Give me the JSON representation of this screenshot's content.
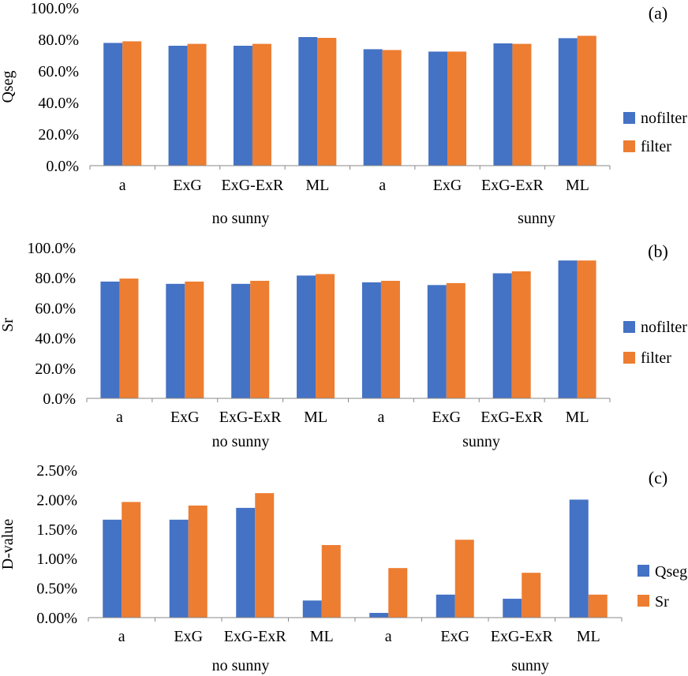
{
  "colors": {
    "series1": "#4472C4",
    "series2": "#ED7D31",
    "axis": "#898989"
  },
  "chart_data": [
    {
      "type": "bar",
      "panel_label": "(a)",
      "ylabel": "Qseg",
      "ylim": [
        0,
        100
      ],
      "yticks": [
        0,
        20,
        40,
        60,
        80,
        100
      ],
      "ytick_labels": [
        "0.0%",
        "20.0%",
        "40.0%",
        "60.0%",
        "80.0%",
        "100.0%"
      ],
      "categories": [
        "a",
        "ExG",
        "ExG-ExR",
        "ML",
        "a",
        "ExG",
        "ExG-ExR",
        "ML"
      ],
      "groups": [
        "no sunny",
        "sunny"
      ],
      "series": [
        {
          "name": "nofilter",
          "values": [
            77.8,
            76.0,
            76.0,
            81.5,
            73.8,
            72.3,
            77.5,
            80.8
          ]
        },
        {
          "name": "filter",
          "values": [
            78.8,
            77.2,
            77.2,
            81.0,
            73.3,
            72.3,
            77.2,
            82.3
          ]
        }
      ],
      "legend": "right"
    },
    {
      "type": "bar",
      "panel_label": "(b)",
      "ylabel": "Sr",
      "ylim": [
        0,
        100
      ],
      "yticks": [
        0,
        20,
        40,
        60,
        80,
        100
      ],
      "ytick_labels": [
        "0.0%",
        "20.0%",
        "40.0%",
        "60.0%",
        "80.0%",
        "100.0%"
      ],
      "categories": [
        "a",
        "ExG",
        "ExG-ExR",
        "ML",
        "a",
        "ExG",
        "ExG-ExR",
        "ML"
      ],
      "groups": [
        "no sunny",
        "sunny"
      ],
      "series": [
        {
          "name": "nofilter",
          "values": [
            77.5,
            76.0,
            76.0,
            81.5,
            77.0,
            75.2,
            83.0,
            91.5
          ]
        },
        {
          "name": "filter",
          "values": [
            79.5,
            77.5,
            78.0,
            82.5,
            78.0,
            76.5,
            84.3,
            91.5
          ]
        }
      ],
      "legend": "right"
    },
    {
      "type": "bar",
      "panel_label": "(c)",
      "ylabel": "D-value",
      "ylim": [
        0,
        2.5
      ],
      "yticks": [
        0,
        0.5,
        1.0,
        1.5,
        2.0,
        2.5
      ],
      "ytick_labels": [
        "0.00%",
        "0.50%",
        "1.00%",
        "1.50%",
        "2.00%",
        "2.50%"
      ],
      "categories": [
        "a",
        "ExG",
        "ExG-ExR",
        "ML",
        "a",
        "ExG",
        "ExG-ExR",
        "ML"
      ],
      "groups": [
        "no sunny",
        "sunny"
      ],
      "series": [
        {
          "name": "Qseg",
          "values": [
            1.66,
            1.66,
            1.86,
            0.29,
            0.08,
            0.39,
            0.32,
            2.0
          ]
        },
        {
          "name": "Sr",
          "values": [
            1.96,
            1.9,
            2.11,
            1.23,
            0.84,
            1.32,
            0.76,
            0.39
          ]
        }
      ],
      "legend": "right"
    }
  ]
}
